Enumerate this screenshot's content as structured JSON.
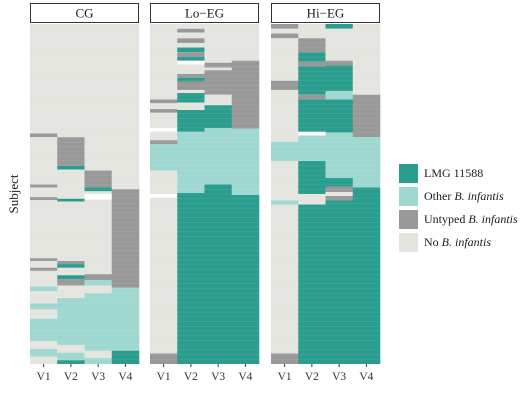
{
  "chart_data": {
    "type": "heatmap",
    "ylabel": "Subject",
    "panels": [
      {
        "title": "CG",
        "xticks": [
          "V1",
          "V2",
          "V3",
          "V4"
        ],
        "columns": [
          [
            {
              "status": "none",
              "y0": 0.0,
              "y1": 0.322
            },
            {
              "status": "untyped",
              "y0": 0.322,
              "y1": 0.333
            },
            {
              "status": "none",
              "y0": 0.333,
              "y1": 0.472
            },
            {
              "status": "untyped",
              "y0": 0.472,
              "y1": 0.481
            },
            {
              "status": "none",
              "y0": 0.481,
              "y1": 0.509
            },
            {
              "status": "untyped",
              "y0": 0.509,
              "y1": 0.518
            },
            {
              "status": "none",
              "y0": 0.518,
              "y1": 0.689
            },
            {
              "status": "untyped",
              "y0": 0.689,
              "y1": 0.697
            },
            {
              "status": "none",
              "y0": 0.697,
              "y1": 0.717
            },
            {
              "status": "untyped",
              "y0": 0.717,
              "y1": 0.726
            },
            {
              "status": "none",
              "y0": 0.726,
              "y1": 0.772
            },
            {
              "status": "other",
              "y0": 0.772,
              "y1": 0.786
            },
            {
              "status": "none",
              "y0": 0.786,
              "y1": 0.822
            },
            {
              "status": "other",
              "y0": 0.822,
              "y1": 0.839
            },
            {
              "status": "none",
              "y0": 0.839,
              "y1": 0.867
            },
            {
              "status": "other",
              "y0": 0.867,
              "y1": 0.933
            },
            {
              "status": "none",
              "y0": 0.933,
              "y1": 0.956
            },
            {
              "status": "other",
              "y0": 0.956,
              "y1": 0.978
            },
            {
              "status": "none",
              "y0": 0.978,
              "y1": 1.0
            }
          ],
          [
            {
              "status": "none",
              "y0": 0.0,
              "y1": 0.333
            },
            {
              "status": "untyped",
              "y0": 0.333,
              "y1": 0.417
            },
            {
              "status": "lmg",
              "y0": 0.417,
              "y1": 0.428
            },
            {
              "status": "none",
              "y0": 0.428,
              "y1": 0.514
            },
            {
              "status": "lmg",
              "y0": 0.514,
              "y1": 0.522
            },
            {
              "status": "none",
              "y0": 0.522,
              "y1": 0.697
            },
            {
              "status": "untyped",
              "y0": 0.697,
              "y1": 0.706
            },
            {
              "status": "lmg",
              "y0": 0.706,
              "y1": 0.717
            },
            {
              "status": "none",
              "y0": 0.717,
              "y1": 0.739
            },
            {
              "status": "lmg",
              "y0": 0.739,
              "y1": 0.75
            },
            {
              "status": "untyped",
              "y0": 0.75,
              "y1": 0.769
            },
            {
              "status": "none",
              "y0": 0.769,
              "y1": 0.806
            },
            {
              "status": "other",
              "y0": 0.806,
              "y1": 0.944
            },
            {
              "status": "none",
              "y0": 0.944,
              "y1": 0.967
            },
            {
              "status": "other",
              "y0": 0.967,
              "y1": 0.989
            },
            {
              "status": "lmg",
              "y0": 0.989,
              "y1": 1.0
            }
          ],
          [
            {
              "status": "none",
              "y0": 0.0,
              "y1": 0.431
            },
            {
              "status": "untyped",
              "y0": 0.431,
              "y1": 0.481
            },
            {
              "status": "lmg",
              "y0": 0.481,
              "y1": 0.492
            },
            {
              "status": "none",
              "y0": 0.492,
              "y1": 0.5
            },
            {
              "status": "white",
              "y0": 0.5,
              "y1": 0.517
            },
            {
              "status": "none",
              "y0": 0.517,
              "y1": 0.736
            },
            {
              "status": "untyped",
              "y0": 0.736,
              "y1": 0.753
            },
            {
              "status": "other",
              "y0": 0.753,
              "y1": 0.769
            },
            {
              "status": "none",
              "y0": 0.769,
              "y1": 0.792
            },
            {
              "status": "other",
              "y0": 0.792,
              "y1": 0.961
            },
            {
              "status": "none",
              "y0": 0.961,
              "y1": 0.983
            },
            {
              "status": "other",
              "y0": 0.983,
              "y1": 1.0
            }
          ],
          [
            {
              "status": "none",
              "y0": 0.0,
              "y1": 0.486
            },
            {
              "status": "untyped",
              "y0": 0.486,
              "y1": 0.775
            },
            {
              "status": "other",
              "y0": 0.775,
              "y1": 0.961
            },
            {
              "status": "lmg",
              "y0": 0.961,
              "y1": 1.0
            }
          ]
        ]
      },
      {
        "title": "Lo−EG",
        "xticks": [
          "V1",
          "V2",
          "V3",
          "V4"
        ],
        "columns": [
          [
            {
              "status": "none",
              "y0": 0.0,
              "y1": 0.222
            },
            {
              "status": "untyped",
              "y0": 0.222,
              "y1": 0.233
            },
            {
              "status": "none",
              "y0": 0.233,
              "y1": 0.25
            },
            {
              "status": "untyped",
              "y0": 0.25,
              "y1": 0.261
            },
            {
              "status": "none",
              "y0": 0.261,
              "y1": 0.306
            },
            {
              "status": "white",
              "y0": 0.306,
              "y1": 0.317
            },
            {
              "status": "none",
              "y0": 0.317,
              "y1": 0.342
            },
            {
              "status": "untyped",
              "y0": 0.342,
              "y1": 0.353
            },
            {
              "status": "other",
              "y0": 0.353,
              "y1": 0.431
            },
            {
              "status": "none",
              "y0": 0.431,
              "y1": 0.5
            },
            {
              "status": "white",
              "y0": 0.5,
              "y1": 0.511
            },
            {
              "status": "none",
              "y0": 0.511,
              "y1": 0.969
            },
            {
              "status": "untyped",
              "y0": 0.969,
              "y1": 1.0
            }
          ],
          [
            {
              "status": "none",
              "y0": 0.0,
              "y1": 0.014
            },
            {
              "status": "untyped",
              "y0": 0.014,
              "y1": 0.025
            },
            {
              "status": "none",
              "y0": 0.025,
              "y1": 0.042
            },
            {
              "status": "untyped",
              "y0": 0.042,
              "y1": 0.056
            },
            {
              "status": "none",
              "y0": 0.056,
              "y1": 0.069
            },
            {
              "status": "lmg",
              "y0": 0.069,
              "y1": 0.083
            },
            {
              "status": "untyped",
              "y0": 0.083,
              "y1": 0.097
            },
            {
              "status": "lmg",
              "y0": 0.097,
              "y1": 0.108
            },
            {
              "status": "white",
              "y0": 0.108,
              "y1": 0.119
            },
            {
              "status": "none",
              "y0": 0.119,
              "y1": 0.147
            },
            {
              "status": "untyped",
              "y0": 0.147,
              "y1": 0.158
            },
            {
              "status": "lmg",
              "y0": 0.158,
              "y1": 0.169
            },
            {
              "status": "untyped",
              "y0": 0.169,
              "y1": 0.194
            },
            {
              "status": "none",
              "y0": 0.194,
              "y1": 0.203
            },
            {
              "status": "lmg",
              "y0": 0.203,
              "y1": 0.231
            },
            {
              "status": "none",
              "y0": 0.231,
              "y1": 0.253
            },
            {
              "status": "lmg",
              "y0": 0.253,
              "y1": 0.317
            },
            {
              "status": "other",
              "y0": 0.317,
              "y1": 0.497
            },
            {
              "status": "lmg",
              "y0": 0.497,
              "y1": 1.0
            }
          ],
          [
            {
              "status": "none",
              "y0": 0.0,
              "y1": 0.114
            },
            {
              "status": "untyped",
              "y0": 0.114,
              "y1": 0.128
            },
            {
              "status": "none",
              "y0": 0.128,
              "y1": 0.136
            },
            {
              "status": "untyped",
              "y0": 0.136,
              "y1": 0.208
            },
            {
              "status": "none",
              "y0": 0.208,
              "y1": 0.239
            },
            {
              "status": "lmg",
              "y0": 0.239,
              "y1": 0.306
            },
            {
              "status": "other",
              "y0": 0.306,
              "y1": 0.472
            },
            {
              "status": "lmg",
              "y0": 0.472,
              "y1": 1.0
            }
          ],
          [
            {
              "status": "none",
              "y0": 0.0,
              "y1": 0.108
            },
            {
              "status": "untyped",
              "y0": 0.108,
              "y1": 0.308
            },
            {
              "status": "other",
              "y0": 0.308,
              "y1": 0.503
            },
            {
              "status": "lmg",
              "y0": 0.503,
              "y1": 1.0
            }
          ]
        ]
      },
      {
        "title": "Hi−EG",
        "xticks": [
          "V1",
          "V2",
          "V3",
          "V4"
        ],
        "columns": [
          [
            {
              "status": "untyped",
              "y0": 0.0,
              "y1": 0.014
            },
            {
              "status": "none",
              "y0": 0.014,
              "y1": 0.028
            },
            {
              "status": "untyped",
              "y0": 0.028,
              "y1": 0.042
            },
            {
              "status": "none",
              "y0": 0.042,
              "y1": 0.167
            },
            {
              "status": "untyped",
              "y0": 0.167,
              "y1": 0.194
            },
            {
              "status": "none",
              "y0": 0.194,
              "y1": 0.347
            },
            {
              "status": "other",
              "y0": 0.347,
              "y1": 0.403
            },
            {
              "status": "none",
              "y0": 0.403,
              "y1": 0.519
            },
            {
              "status": "other",
              "y0": 0.519,
              "y1": 0.531
            },
            {
              "status": "none",
              "y0": 0.531,
              "y1": 0.969
            },
            {
              "status": "untyped",
              "y0": 0.969,
              "y1": 1.0
            }
          ],
          [
            {
              "status": "none",
              "y0": 0.0,
              "y1": 0.042
            },
            {
              "status": "untyped",
              "y0": 0.042,
              "y1": 0.083
            },
            {
              "status": "lmg",
              "y0": 0.083,
              "y1": 0.111
            },
            {
              "status": "untyped",
              "y0": 0.111,
              "y1": 0.125
            },
            {
              "status": "lmg",
              "y0": 0.125,
              "y1": 0.208
            },
            {
              "status": "untyped",
              "y0": 0.208,
              "y1": 0.222
            },
            {
              "status": "lmg",
              "y0": 0.222,
              "y1": 0.317
            },
            {
              "status": "white",
              "y0": 0.317,
              "y1": 0.328
            },
            {
              "status": "other",
              "y0": 0.328,
              "y1": 0.403
            },
            {
              "status": "lmg",
              "y0": 0.403,
              "y1": 0.5
            },
            {
              "status": "none",
              "y0": 0.5,
              "y1": 0.531
            },
            {
              "status": "lmg",
              "y0": 0.531,
              "y1": 1.0
            }
          ],
          [
            {
              "status": "lmg",
              "y0": 0.0,
              "y1": 0.014
            },
            {
              "status": "none",
              "y0": 0.014,
              "y1": 0.108
            },
            {
              "status": "untyped",
              "y0": 0.108,
              "y1": 0.122
            },
            {
              "status": "lmg",
              "y0": 0.122,
              "y1": 0.197
            },
            {
              "status": "other",
              "y0": 0.197,
              "y1": 0.222
            },
            {
              "status": "lmg",
              "y0": 0.222,
              "y1": 0.319
            },
            {
              "status": "other",
              "y0": 0.319,
              "y1": 0.453
            },
            {
              "status": "lmg",
              "y0": 0.453,
              "y1": 0.478
            },
            {
              "status": "untyped",
              "y0": 0.478,
              "y1": 0.494
            },
            {
              "status": "none",
              "y0": 0.494,
              "y1": 0.506
            },
            {
              "status": "untyped",
              "y0": 0.506,
              "y1": 0.519
            },
            {
              "status": "lmg",
              "y0": 0.519,
              "y1": 1.0
            }
          ],
          [
            {
              "status": "none",
              "y0": 0.0,
              "y1": 0.208
            },
            {
              "status": "untyped",
              "y0": 0.208,
              "y1": 0.333
            },
            {
              "status": "other",
              "y0": 0.333,
              "y1": 0.481
            },
            {
              "status": "lmg",
              "y0": 0.481,
              "y1": 1.0
            }
          ]
        ]
      }
    ],
    "legend": [
      {
        "key": "lmg",
        "label": "LMG 11588",
        "italic": ""
      },
      {
        "key": "other",
        "label": "Other ",
        "italic": "B. infantis"
      },
      {
        "key": "untyped",
        "label": "Untyped ",
        "italic": "B. infantis"
      },
      {
        "key": "none",
        "label": "No ",
        "italic": "B. infantis"
      }
    ],
    "legend_position": "right",
    "colors": {
      "lmg": "#2a9d8f",
      "other": "#9fd8d1",
      "untyped": "#999999",
      "none": "#e5e5e0",
      "white": "#ffffff",
      "strip_border": "#333333"
    },
    "grid": false
  }
}
